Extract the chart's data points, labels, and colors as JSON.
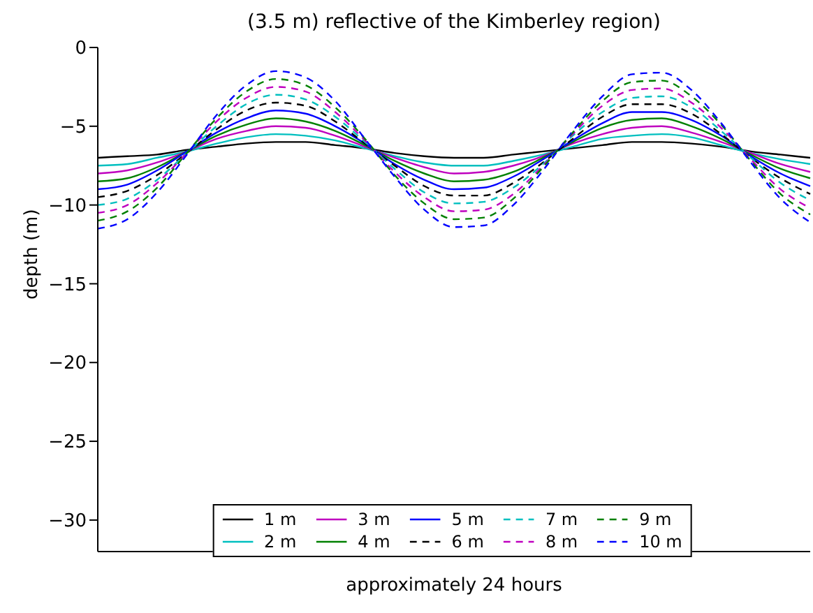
{
  "chart_data": {
    "type": "line",
    "title": "(3.5 m) reflective of the Kimberley region)",
    "xlabel": "approximately 24 hours",
    "ylabel": "depth (m)",
    "categories": [
      null,
      null,
      null,
      null,
      null,
      null,
      null,
      null,
      null,
      null,
      null,
      null,
      null,
      null,
      null,
      null,
      null,
      null,
      null,
      null,
      null,
      null,
      null,
      null,
      null
    ],
    "ylim": [
      -32,
      0
    ],
    "yticks": [
      -30,
      -25,
      -20,
      -15,
      -10,
      -5,
      0
    ],
    "legend": "bottom",
    "series": [
      {
        "name": "1 m",
        "color": "#000000",
        "line_style": "solid",
        "values": [
          -7,
          -6.9,
          -6.8,
          -6.5,
          -6.3,
          -6.1,
          -6,
          -6,
          -6.2,
          -6.4,
          -6.7,
          -6.9,
          -7,
          -7,
          -6.8,
          -6.6,
          -6.4,
          -6.2,
          -6,
          -6,
          -6.1,
          -6.3,
          -6.6,
          -6.8,
          -7
        ]
      },
      {
        "name": "2 m",
        "color": "#00bfbf",
        "line_style": "solid",
        "values": [
          -7.5,
          -7.4,
          -7,
          -6.6,
          -6.1,
          -5.7,
          -5.5,
          -5.6,
          -5.9,
          -6.4,
          -6.9,
          -7.3,
          -7.5,
          -7.5,
          -7.2,
          -6.8,
          -6.3,
          -5.8,
          -5.6,
          -5.5,
          -5.7,
          -6.2,
          -6.7,
          -7.1,
          -7.4
        ]
      },
      {
        "name": "3 m",
        "color": "#bf00bf",
        "line_style": "solid",
        "values": [
          -8,
          -7.8,
          -7.3,
          -6.6,
          -5.8,
          -5.3,
          -5,
          -5.1,
          -5.6,
          -6.3,
          -7,
          -7.6,
          -8,
          -7.9,
          -7.5,
          -6.9,
          -6.1,
          -5.5,
          -5.1,
          -5,
          -5.4,
          -6,
          -6.7,
          -7.4,
          -7.9
        ]
      },
      {
        "name": "4 m",
        "color": "#008000",
        "line_style": "solid",
        "values": [
          -8.5,
          -8.3,
          -7.6,
          -6.6,
          -5.6,
          -4.9,
          -4.5,
          -4.7,
          -5.3,
          -6.2,
          -7.2,
          -8,
          -8.5,
          -8.4,
          -7.9,
          -7,
          -6,
          -5.1,
          -4.6,
          -4.5,
          -5,
          -5.8,
          -6.8,
          -7.7,
          -8.3
        ]
      },
      {
        "name": "5 m",
        "color": "#0000ff",
        "line_style": "solid",
        "values": [
          -9,
          -8.7,
          -7.8,
          -6.6,
          -5.4,
          -4.5,
          -4,
          -4.2,
          -5,
          -6.1,
          -7.4,
          -8.4,
          -9,
          -8.9,
          -8.2,
          -7.1,
          -5.9,
          -4.8,
          -4.1,
          -4.1,
          -4.6,
          -5.6,
          -6.9,
          -8,
          -8.8
        ]
      },
      {
        "name": "6 m",
        "color": "#000000",
        "line_style": "dashed",
        "values": [
          -9.5,
          -9.1,
          -8.1,
          -6.7,
          -5.2,
          -4,
          -3.5,
          -3.7,
          -4.7,
          -6.1,
          -7.5,
          -8.8,
          -9.4,
          -9.4,
          -8.6,
          -7.3,
          -5.8,
          -4.4,
          -3.6,
          -3.6,
          -4.2,
          -5.5,
          -7,
          -8.3,
          -9.3
        ]
      },
      {
        "name": "7 m",
        "color": "#00bfbf",
        "line_style": "dashed",
        "values": [
          -10,
          -9.6,
          -8.4,
          -6.7,
          -5,
          -3.6,
          -3,
          -3.3,
          -4.4,
          -6,
          -7.7,
          -9.2,
          -9.9,
          -9.8,
          -8.9,
          -7.4,
          -5.6,
          -4.1,
          -3.2,
          -3.1,
          -3.8,
          -5.3,
          -7,
          -8.6,
          -9.7
        ]
      },
      {
        "name": "8 m",
        "color": "#bf00bf",
        "line_style": "dashed",
        "values": [
          -10.5,
          -10,
          -8.6,
          -6.7,
          -4.7,
          -3.2,
          -2.5,
          -2.8,
          -4.1,
          -5.9,
          -7.9,
          -9.5,
          -10.4,
          -10.3,
          -9.3,
          -7.5,
          -5.5,
          -3.7,
          -2.7,
          -2.6,
          -3.5,
          -5.1,
          -7.1,
          -9,
          -10.2
        ]
      },
      {
        "name": "9 m",
        "color": "#008000",
        "line_style": "dashed",
        "values": [
          -11,
          -10.4,
          -8.9,
          -6.7,
          -4.5,
          -2.8,
          -2,
          -2.4,
          -3.8,
          -5.8,
          -8.1,
          -9.9,
          -10.9,
          -10.8,
          -9.6,
          -7.6,
          -5.4,
          -3.4,
          -2.2,
          -2.1,
          -3.1,
          -4.9,
          -7.2,
          -9.3,
          -10.6
        ]
      },
      {
        "name": "10 m",
        "color": "#0000ff",
        "line_style": "dashed",
        "values": [
          -11.5,
          -10.9,
          -9.2,
          -6.8,
          -4.3,
          -2.4,
          -1.5,
          -1.9,
          -3.4,
          -5.8,
          -8.2,
          -10.3,
          -11.4,
          -11.3,
          -10,
          -7.8,
          -5.3,
          -3.1,
          -1.7,
          -1.6,
          -2.7,
          -4.8,
          -7.3,
          -9.6,
          -11.1
        ]
      }
    ]
  }
}
